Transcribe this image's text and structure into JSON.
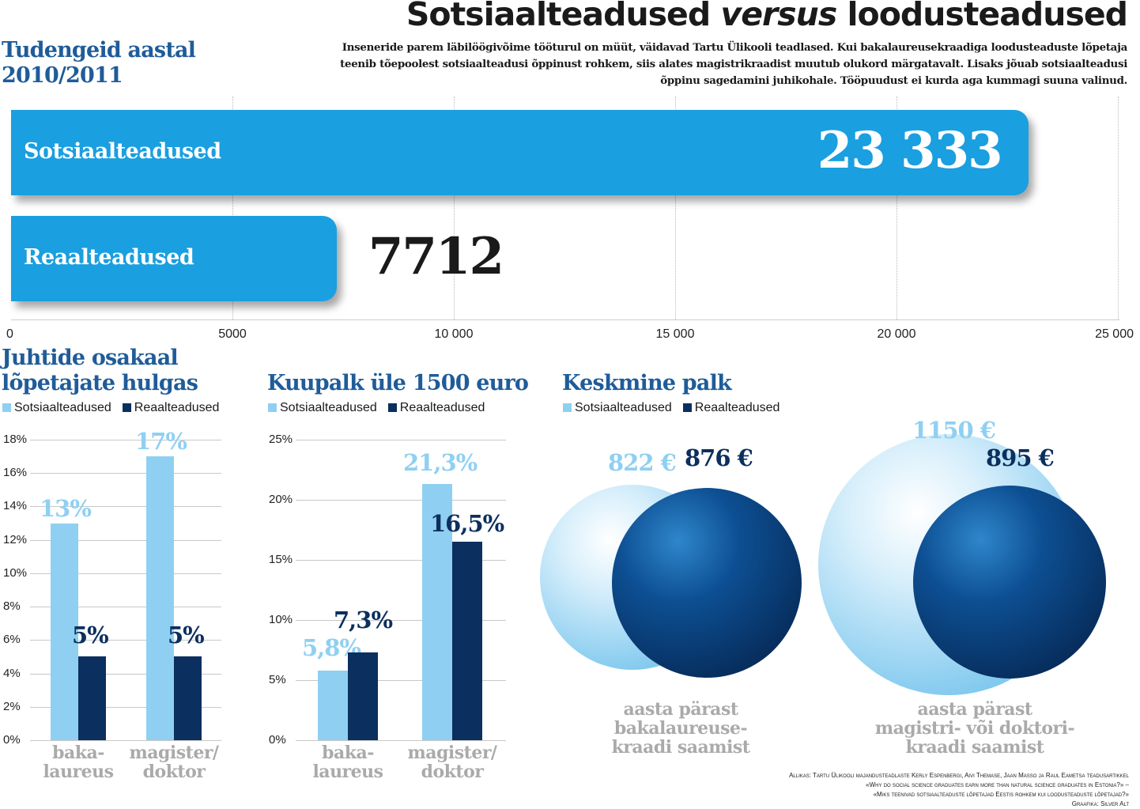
{
  "header": {
    "title_part1": "Sotsiaalteadused",
    "title_part2": "versus",
    "title_part3": "loodusteadused",
    "lead": "Inseneride parem läbilöögivõime tööturul on müüt, väidavad Tartu Ülikooli teadlased. Kui bakalaureusekraadiga loodusteaduste lõpetaja teenib tõepoolest sotsiaalteadusi õppinust rohkem, siis alates magistrikraadist muutub olukord märgatavalt. Lisaks jõuab sotsiaalteadusi õppinu sagedamini juhikohale. Tööpuudust ei kurda aga kummagi suuna valinud.",
    "students_title_line1": "Tudengeid aastal",
    "students_title_line2": "2010/2011"
  },
  "colors": {
    "light": "#8fd0f2",
    "dark": "#0b2f5e",
    "bar": "#1a9fe0",
    "title_blue": "#1f5c99"
  },
  "chart_data": [
    {
      "type": "bar",
      "orientation": "horizontal",
      "title": "Tudengeid aastal 2010/2011",
      "categories": [
        "Sotsiaalteadused",
        "Reaalteadused"
      ],
      "values": [
        23333,
        7712
      ],
      "value_labels": [
        "23 333",
        "7712"
      ],
      "xlim": [
        0,
        25000
      ],
      "ticks": [
        0,
        5000,
        10000,
        15000,
        20000,
        25000
      ],
      "tick_labels": [
        "0",
        "5000",
        "10 000",
        "15 000",
        "20 000",
        "25 000"
      ]
    },
    {
      "type": "bar",
      "title_line1": "Juhtide osakaal",
      "title_line2": "lõpetajate hulgas",
      "legend": [
        "Sotsiaalteadused",
        "Reaalteadused"
      ],
      "categories": [
        [
          "baka-",
          "laureus"
        ],
        [
          "magister/",
          "doktor"
        ]
      ],
      "series": [
        {
          "name": "Sotsiaalteadused",
          "values": [
            13,
            17
          ],
          "labels": [
            "13%",
            "17%"
          ]
        },
        {
          "name": "Reaalteadused",
          "values": [
            5,
            5
          ],
          "labels": [
            "5%",
            "5%"
          ]
        }
      ],
      "ylim": [
        0,
        18
      ],
      "ticks": [
        0,
        2,
        4,
        6,
        8,
        10,
        12,
        14,
        16,
        18
      ],
      "tick_labels": [
        "0%",
        "2%",
        "4%",
        "6%",
        "8%",
        "10%",
        "12%",
        "14%",
        "16%",
        "18%"
      ]
    },
    {
      "type": "bar",
      "title": "Kuupalk üle 1500 euro",
      "legend": [
        "Sotsiaalteadused",
        "Reaalteadused"
      ],
      "categories": [
        [
          "baka-",
          "laureus"
        ],
        [
          "magister/",
          "doktor"
        ]
      ],
      "series": [
        {
          "name": "Sotsiaalteadused",
          "values": [
            5.8,
            21.3
          ],
          "labels": [
            "5,8%",
            "21,3%"
          ]
        },
        {
          "name": "Reaalteadused",
          "values": [
            7.3,
            16.5
          ],
          "labels": [
            "7,3%",
            "16,5%"
          ]
        }
      ],
      "ylim": [
        0,
        25
      ],
      "ticks": [
        0,
        5,
        10,
        15,
        20,
        25
      ],
      "tick_labels": [
        "0%",
        "5%",
        "10%",
        "15%",
        "20%",
        "25%"
      ]
    },
    {
      "type": "bubble",
      "title": "Keskmine palk",
      "legend": [
        "Sotsiaalteadused",
        "Reaalteadused"
      ],
      "groups": [
        {
          "caption": [
            "aasta pärast",
            "bakalaureuse-",
            "kraadi saamist"
          ],
          "social": 822,
          "social_label": "822 €",
          "natural": 876,
          "natural_label": "876 €"
        },
        {
          "caption": [
            "aasta pärast",
            "magistri- või doktori-",
            "kraadi saamist"
          ],
          "social": 1150,
          "social_label": "1150 €",
          "natural": 895,
          "natural_label": "895 €"
        }
      ]
    }
  ],
  "source": {
    "line1": "Allikas: Tartu Ülikooli majandusteadlaste Kerly Espenbergi, Aivi Themase, Jaan Masso ja Raul Eametsa teadusartikkel",
    "line2": "«Why do social science graduates earn more than natural science graduates in Estonia?» –",
    "line3": "«Miks teenivad sotsiaalteaduste lõpetajad Eestis rohkem kui loodusteaduste lõpetajad?»",
    "line4": "Graafika: Silver Alt"
  }
}
